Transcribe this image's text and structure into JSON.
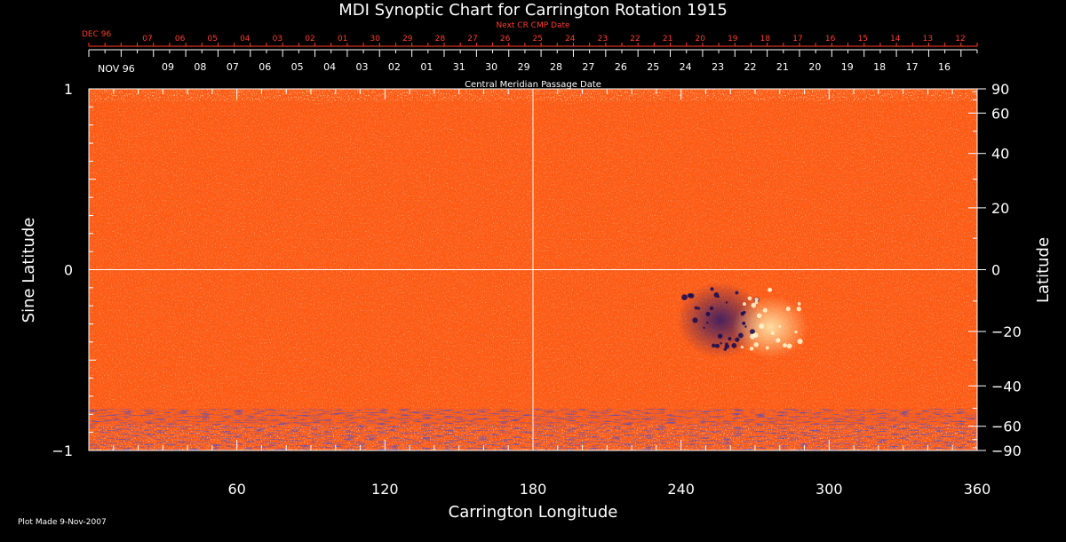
{
  "chart_data": {
    "type": "heatmap",
    "title": "MDI Synoptic Chart for Carrington Rotation 1915",
    "xlabel": "Carrington Longitude",
    "ylabel_left": "Sine Latitude",
    "ylabel_right": "Latitude",
    "xlim": [
      0,
      360
    ],
    "ylim": [
      -1,
      1
    ],
    "x_ticks": [
      60,
      120,
      180,
      240,
      300,
      360
    ],
    "y_ticks_left": [
      {
        "value": 1,
        "label": "1"
      },
      {
        "value": 0,
        "label": "0"
      },
      {
        "value": -1,
        "label": "−1"
      }
    ],
    "y_ticks_right_deg": [
      90,
      60,
      40,
      20,
      0,
      -20,
      -40,
      -60,
      -90
    ],
    "y_ticks_right_labels": [
      "90",
      "60",
      "40",
      "20",
      "0",
      "−20",
      "−40",
      "−60",
      "−90"
    ],
    "grid_lines": {
      "longitude": 180,
      "sine_latitude": 0
    },
    "top_axis_title": "Central Meridian Passage Date",
    "top_axis_month": "NOV 96",
    "top_axis_days": [
      "09",
      "08",
      "07",
      "06",
      "05",
      "04",
      "03",
      "02",
      "01",
      "31",
      "30",
      "29",
      "28",
      "27",
      "26",
      "25",
      "24",
      "23",
      "22",
      "21",
      "20",
      "19",
      "18",
      "17",
      "16"
    ],
    "next_cr_title": "Next CR CMP Date",
    "next_cr_month": "DEC 96",
    "next_cr_days": [
      "07",
      "06",
      "05",
      "04",
      "03",
      "02",
      "01",
      "30",
      "29",
      "28",
      "27",
      "26",
      "25",
      "24",
      "23",
      "22",
      "21",
      "20",
      "19",
      "18",
      "17",
      "16",
      "15",
      "14",
      "13",
      "12"
    ],
    "active_region": {
      "longitude_range": [
        235,
        290
      ],
      "latitude_range_deg": [
        -5,
        -28
      ]
    },
    "colors": {
      "background": "#000000",
      "map_base": "#ff5a14",
      "map_bright": "#ffe890",
      "map_dark": "#1a1170",
      "next_cr_text": "#ff3d2e",
      "axis_text": "#ffffff"
    }
  },
  "footer": "Plot Made  9-Nov-2007"
}
